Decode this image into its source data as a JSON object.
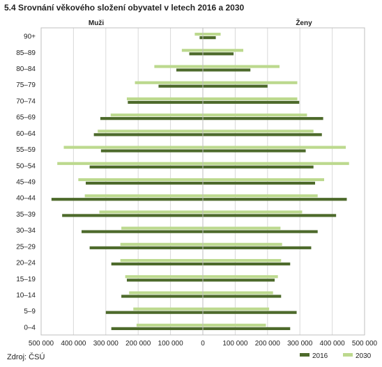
{
  "title": "5.4 Srovnání věkového složení obyvatel v letech 2016 a 2030",
  "source": "Zdroj:  ČSÚ",
  "chart_data": {
    "type": "bar",
    "orientation": "horizontal-population-pyramid",
    "left_group_label": "Muži",
    "right_group_label": "Ženy",
    "categories": [
      "90+",
      "85–89",
      "80–84",
      "75–79",
      "70–74",
      "65–69",
      "60–64",
      "55–59",
      "50–54",
      "45–49",
      "40–44",
      "35–39",
      "30–34",
      "25–29",
      "20–24",
      "15–19",
      "10–14",
      "5–9",
      "0–4"
    ],
    "x_tick_labels": [
      "500 000",
      "400 000",
      "300 000",
      "200 000",
      "100 000",
      "0",
      "100 000",
      "200 000",
      "300 000",
      "400 000",
      "500 000"
    ],
    "xlim": [
      -500000,
      500000
    ],
    "grid": "vertical",
    "legend_position": "bottom-right",
    "series": [
      {
        "name": "2016",
        "color": "#4d6a2b",
        "men": [
          -10000,
          -42000,
          -82000,
          -137000,
          -232000,
          -317000,
          -337000,
          -315000,
          -350000,
          -362000,
          -468000,
          -435000,
          -375000,
          -350000,
          -283000,
          -235000,
          -252000,
          -300000,
          -283000
        ],
        "women": [
          40000,
          95000,
          147000,
          200000,
          298000,
          372000,
          368000,
          318000,
          342000,
          347000,
          445000,
          412000,
          355000,
          335000,
          270000,
          222000,
          242000,
          290000,
          270000
        ]
      },
      {
        "name": "2030",
        "color": "#bcd98e",
        "men": [
          -25000,
          -65000,
          -150000,
          -210000,
          -235000,
          -285000,
          -325000,
          -430000,
          -450000,
          -385000,
          -365000,
          -320000,
          -252000,
          -255000,
          -255000,
          -240000,
          -228000,
          -215000,
          -205000
        ],
        "women": [
          55000,
          125000,
          237000,
          292000,
          292000,
          322000,
          342000,
          442000,
          452000,
          375000,
          355000,
          307000,
          240000,
          245000,
          242000,
          232000,
          217000,
          205000,
          195000
        ]
      }
    ]
  }
}
